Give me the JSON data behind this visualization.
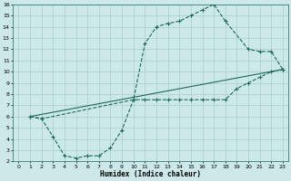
{
  "xlabel": "Humidex (Indice chaleur)",
  "bg_color": "#cce8e8",
  "grid_color": "#aacccc",
  "line_color": "#1a6b5a",
  "xlim": [
    -0.5,
    23.5
  ],
  "ylim": [
    2,
    16
  ],
  "xticks": [
    0,
    1,
    2,
    3,
    4,
    5,
    6,
    7,
    8,
    9,
    10,
    11,
    12,
    13,
    14,
    15,
    16,
    17,
    18,
    19,
    20,
    21,
    22,
    23
  ],
  "yticks": [
    2,
    3,
    4,
    5,
    6,
    7,
    8,
    9,
    10,
    11,
    12,
    13,
    14,
    15,
    16
  ],
  "upper_curve_x": [
    1,
    2,
    10,
    11,
    12,
    13,
    14,
    15,
    16,
    17,
    18,
    20,
    21,
    22,
    23
  ],
  "upper_curve_y": [
    6.0,
    5.8,
    7.5,
    12.5,
    14.0,
    14.3,
    14.5,
    15.0,
    15.5,
    16.0,
    14.5,
    12.0,
    11.8,
    11.8,
    10.2
  ],
  "lower_curve_x": [
    1,
    2,
    3,
    4,
    5,
    6,
    7,
    8,
    9,
    10,
    11,
    12,
    13,
    14,
    15,
    16,
    17,
    18,
    19,
    20,
    21,
    22,
    23
  ],
  "lower_curve_y": [
    6.0,
    5.8,
    4.2,
    2.5,
    2.3,
    2.5,
    2.5,
    3.2,
    4.8,
    7.5,
    7.5,
    7.5,
    7.5,
    7.5,
    7.5,
    7.5,
    7.5,
    7.5,
    8.5,
    9.0,
    9.5,
    10.0,
    10.2
  ],
  "diag_line_x": [
    1,
    23
  ],
  "diag_line_y": [
    6.0,
    10.2
  ]
}
